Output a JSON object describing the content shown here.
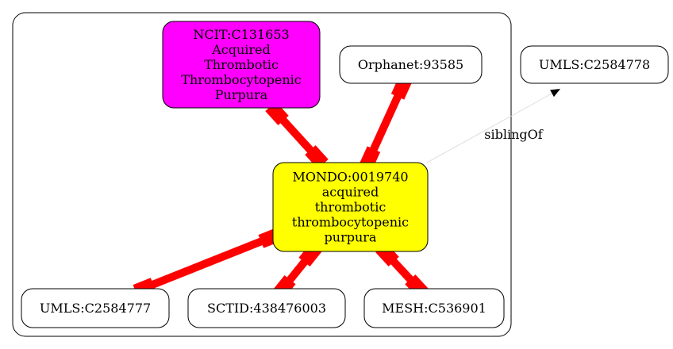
{
  "nodes": [
    {
      "id": "ncit",
      "lines": [
        "NCIT:C131653",
        "Acquired",
        "Thrombotic",
        "Thrombocytopenic",
        "Purpura"
      ],
      "fill": "#ff00ff"
    },
    {
      "id": "orphanet",
      "lines": [
        "Orphanet:93585"
      ],
      "fill": "#ffffff"
    },
    {
      "id": "umls2",
      "lines": [
        "UMLS:C2584778"
      ],
      "fill": "#ffffff"
    },
    {
      "id": "mondo",
      "lines": [
        "MONDO:0019740",
        "acquired",
        "thrombotic",
        "thrombocytopenic",
        "purpura"
      ],
      "fill": "#ffff00"
    },
    {
      "id": "umls1",
      "lines": [
        "UMLS:C2584777"
      ],
      "fill": "#ffffff"
    },
    {
      "id": "sctid",
      "lines": [
        "SCTID:438476003"
      ],
      "fill": "#ffffff"
    },
    {
      "id": "mesh",
      "lines": [
        "MESH:C536901"
      ],
      "fill": "#ffffff"
    }
  ],
  "edges": [
    {
      "from": "ncit",
      "to": "mondo",
      "style": "equivalent",
      "color": "#ff0000"
    },
    {
      "from": "orphanet",
      "to": "mondo",
      "style": "equivalent",
      "color": "#ff0000"
    },
    {
      "from": "mondo",
      "to": "umls1",
      "style": "equivalent",
      "color": "#ff0000"
    },
    {
      "from": "mondo",
      "to": "sctid",
      "style": "equivalent",
      "color": "#ff0000"
    },
    {
      "from": "mondo",
      "to": "mesh",
      "style": "equivalent",
      "color": "#ff0000"
    },
    {
      "from": "mondo",
      "to": "umls2",
      "style": "sibling",
      "label": "siblingOf",
      "color": "#d8d8d8"
    }
  ]
}
